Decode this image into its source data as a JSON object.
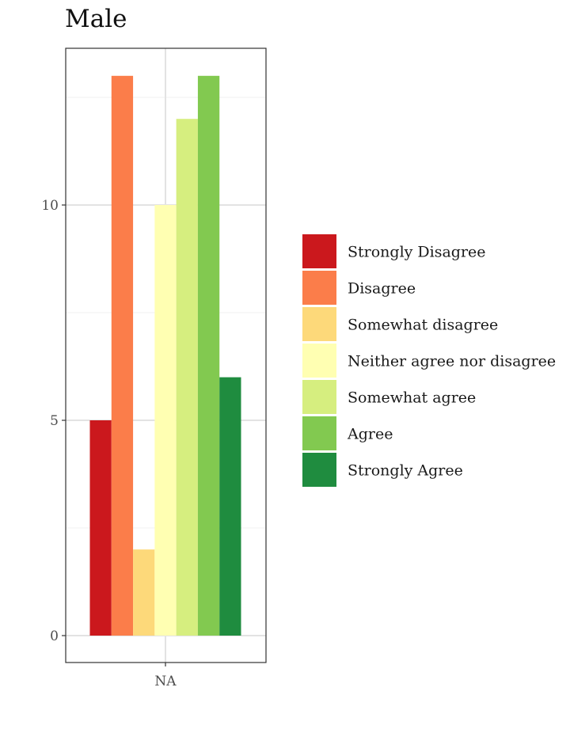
{
  "chart_data": {
    "type": "bar",
    "title": "Male",
    "xlabel": "",
    "ylabel": "",
    "categories": [
      "NA"
    ],
    "series": [
      {
        "name": "Strongly Disagree",
        "values": [
          5
        ],
        "color": "#CB181D"
      },
      {
        "name": "Disagree",
        "values": [
          13
        ],
        "color": "#FB7D4A"
      },
      {
        "name": "Somewhat disagree",
        "values": [
          2
        ],
        "color": "#FDD97A"
      },
      {
        "name": "Neither agree nor disagree",
        "values": [
          10
        ],
        "color": "#FFFFB2"
      },
      {
        "name": "Somewhat agree",
        "values": [
          12
        ],
        "color": "#D6EE7F"
      },
      {
        "name": "Agree",
        "values": [
          13
        ],
        "color": "#82C950"
      },
      {
        "name": "Strongly Agree",
        "values": [
          6
        ],
        "color": "#1F8C3F"
      }
    ],
    "ylim": [
      0,
      14.2
    ],
    "yticks": [
      0,
      5,
      10
    ],
    "grid": true,
    "legend_position": "right"
  }
}
